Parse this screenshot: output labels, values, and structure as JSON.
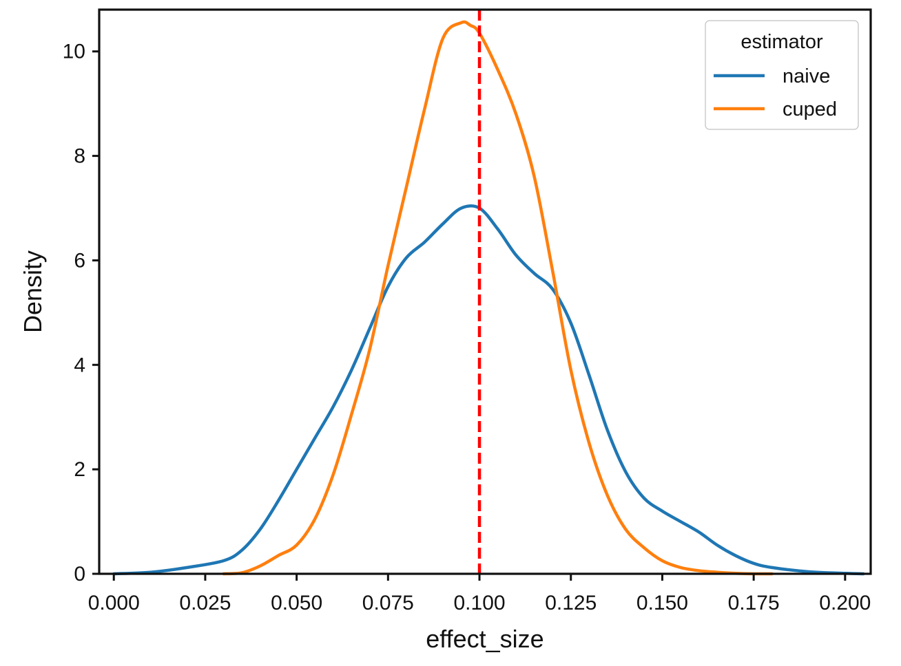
{
  "chart_data": {
    "type": "line",
    "title": "",
    "xlabel": "effect_size",
    "ylabel": "Density",
    "xlim": [
      -0.004,
      0.207
    ],
    "ylim": [
      0,
      10.8
    ],
    "xticks": [
      0.0,
      0.025,
      0.05,
      0.075,
      0.1,
      0.125,
      0.15,
      0.175,
      0.2
    ],
    "xtick_labels": [
      "0.000",
      "0.025",
      "0.050",
      "0.075",
      "0.100",
      "0.125",
      "0.150",
      "0.175",
      "0.200"
    ],
    "yticks": [
      0,
      2,
      4,
      6,
      8,
      10
    ],
    "ytick_labels": [
      "0",
      "2",
      "4",
      "6",
      "8",
      "10"
    ],
    "grid": false,
    "legend": {
      "title": "estimator",
      "location": "top-right",
      "entries": [
        "naive",
        "cuped"
      ]
    },
    "reference_line": {
      "x": 0.1,
      "color": "#ff0000",
      "style": "dashed"
    },
    "series": [
      {
        "name": "naive",
        "color": "#1f77b4",
        "x": [
          0.0,
          0.01,
          0.02,
          0.03,
          0.035,
          0.04,
          0.045,
          0.05,
          0.055,
          0.06,
          0.065,
          0.07,
          0.075,
          0.08,
          0.085,
          0.09,
          0.095,
          0.1,
          0.105,
          0.11,
          0.115,
          0.12,
          0.125,
          0.13,
          0.135,
          0.14,
          0.145,
          0.15,
          0.155,
          0.16,
          0.165,
          0.17,
          0.175,
          0.18,
          0.19,
          0.2,
          0.205
        ],
        "y": [
          0.0,
          0.03,
          0.12,
          0.25,
          0.45,
          0.85,
          1.4,
          2.0,
          2.6,
          3.2,
          3.9,
          4.7,
          5.5,
          6.05,
          6.35,
          6.7,
          7.0,
          7.0,
          6.6,
          6.1,
          5.75,
          5.45,
          4.8,
          3.8,
          2.75,
          1.95,
          1.45,
          1.2,
          1.0,
          0.8,
          0.55,
          0.35,
          0.2,
          0.12,
          0.04,
          0.01,
          0.0
        ]
      },
      {
        "name": "cuped",
        "color": "#ff7f0e",
        "x": [
          0.03,
          0.035,
          0.04,
          0.045,
          0.05,
          0.055,
          0.06,
          0.065,
          0.07,
          0.075,
          0.08,
          0.085,
          0.09,
          0.095,
          0.0975,
          0.1,
          0.105,
          0.11,
          0.115,
          0.12,
          0.125,
          0.13,
          0.135,
          0.14,
          0.145,
          0.15,
          0.155,
          0.16,
          0.165,
          0.17,
          0.175,
          0.18
        ],
        "y": [
          0.0,
          0.02,
          0.15,
          0.35,
          0.55,
          1.05,
          1.9,
          3.05,
          4.3,
          5.9,
          7.4,
          8.9,
          10.25,
          10.55,
          10.5,
          10.35,
          9.65,
          8.8,
          7.6,
          5.8,
          3.9,
          2.5,
          1.5,
          0.85,
          0.5,
          0.25,
          0.12,
          0.06,
          0.03,
          0.01,
          0.0,
          0.0
        ]
      }
    ]
  }
}
